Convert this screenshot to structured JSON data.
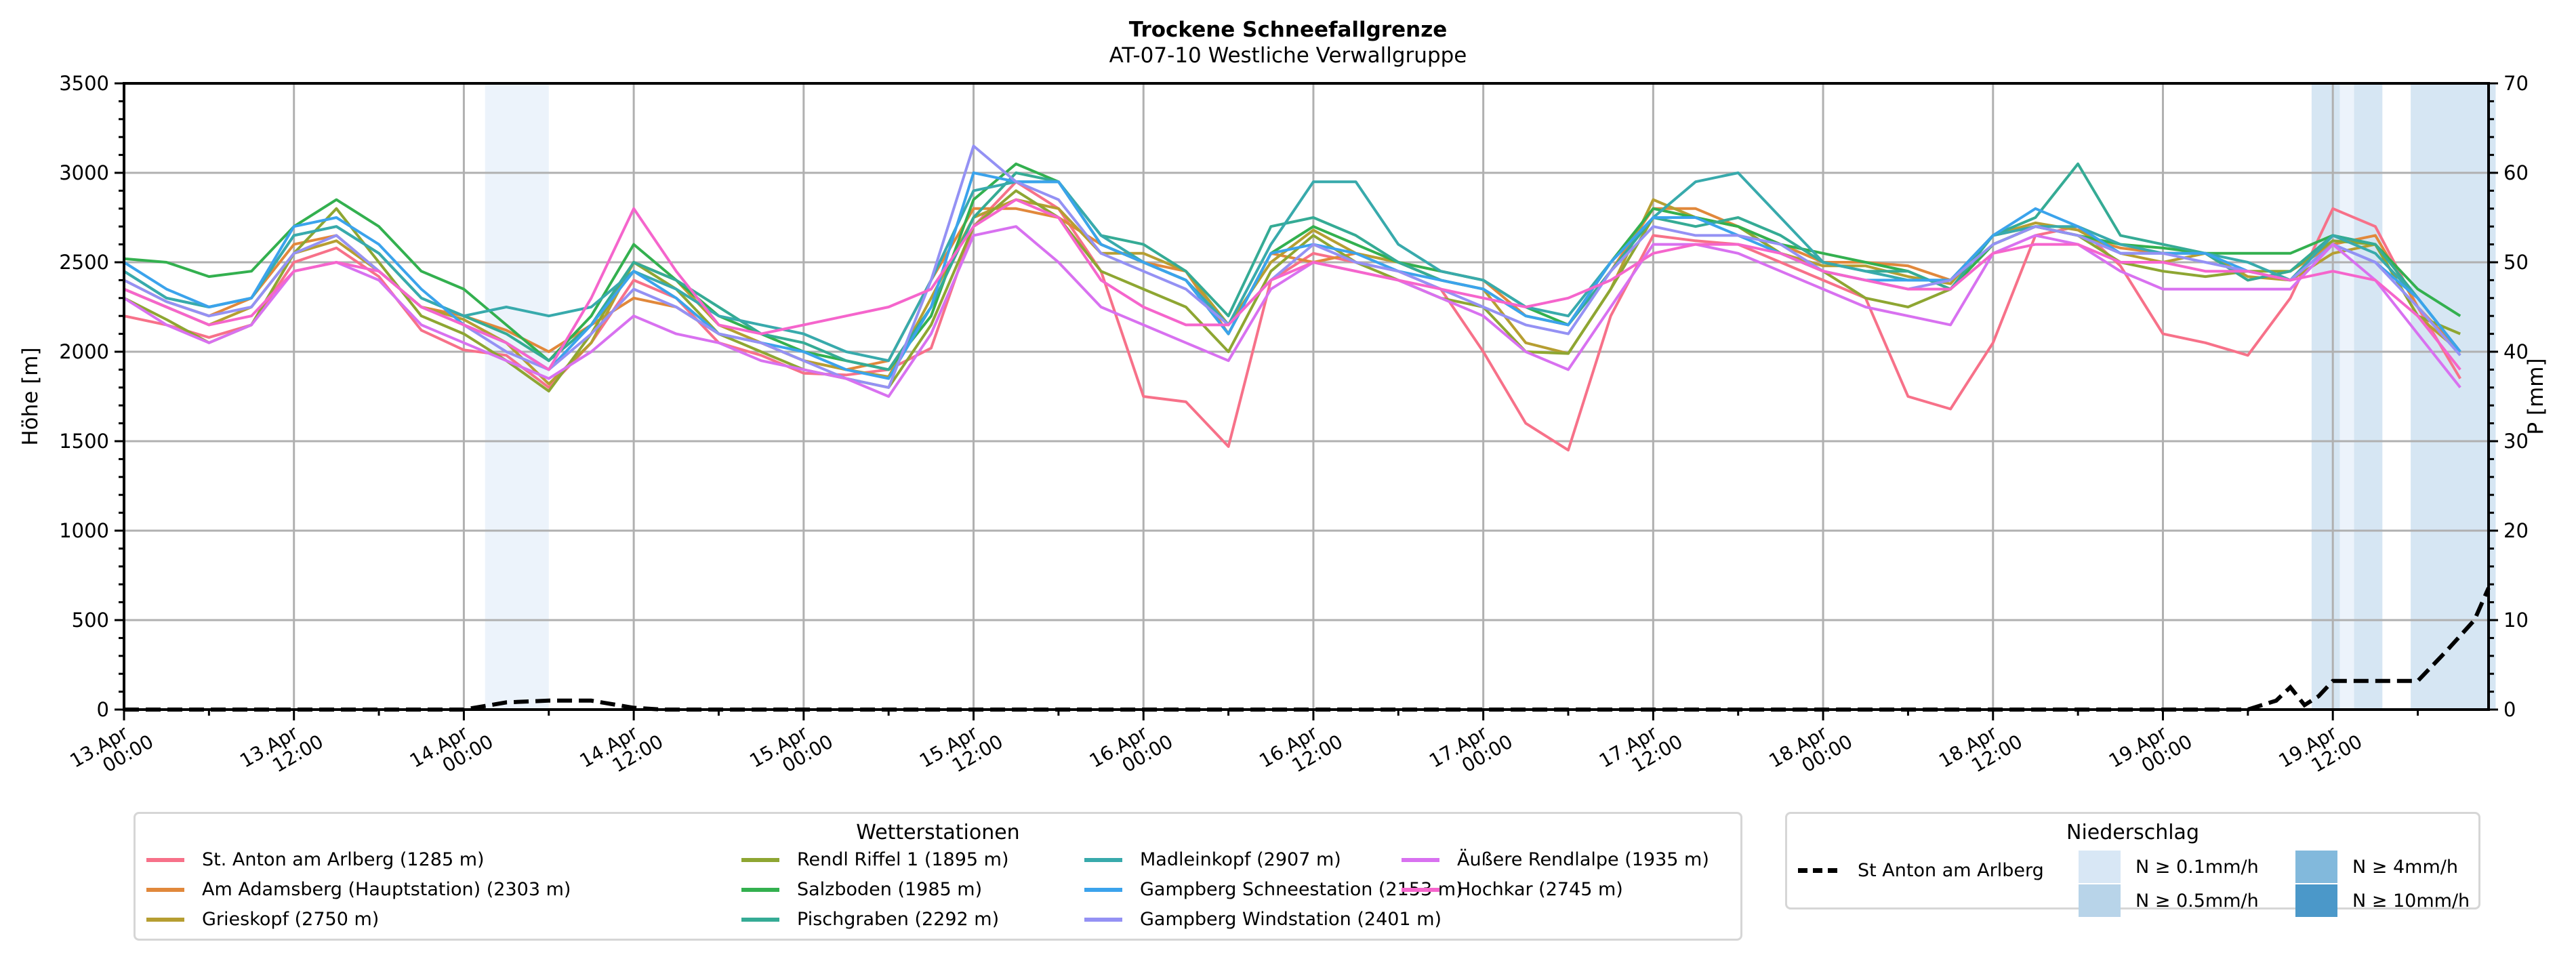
{
  "chart_data": {
    "type": "line",
    "title": "Trockene Schneefallgrenze",
    "subtitle": "AT-07-10 Westliche Verwallgruppe",
    "ylabel": "Höhe [m]",
    "y2label": "P [mm]",
    "ylim": [
      0,
      3500
    ],
    "y2lim": [
      0,
      70
    ],
    "yticks": [
      "0",
      "500",
      "1000",
      "1500",
      "2000",
      "2500",
      "3000",
      "3500"
    ],
    "y2ticks": [
      "0",
      "10",
      "20",
      "30",
      "40",
      "50",
      "60",
      "70"
    ],
    "xlim_hours": [
      0,
      167
    ],
    "xticks": [
      {
        "h": 0,
        "label": [
          "13.Apr",
          "00:00"
        ]
      },
      {
        "h": 12,
        "label": [
          "13.Apr",
          "12:00"
        ]
      },
      {
        "h": 24,
        "label": [
          "14.Apr",
          "00:00"
        ]
      },
      {
        "h": 36,
        "label": [
          "14.Apr",
          "12:00"
        ]
      },
      {
        "h": 48,
        "label": [
          "15.Apr",
          "00:00"
        ]
      },
      {
        "h": 60,
        "label": [
          "15.Apr",
          "12:00"
        ]
      },
      {
        "h": 72,
        "label": [
          "16.Apr",
          "00:00"
        ]
      },
      {
        "h": 84,
        "label": [
          "16.Apr",
          "12:00"
        ]
      },
      {
        "h": 96,
        "label": [
          "17.Apr",
          "00:00"
        ]
      },
      {
        "h": 108,
        "label": [
          "17.Apr",
          "12:00"
        ]
      },
      {
        "h": 120,
        "label": [
          "18.Apr",
          "00:00"
        ]
      },
      {
        "h": 132,
        "label": [
          "18.Apr",
          "12:00"
        ]
      },
      {
        "h": 144,
        "label": [
          "19.Apr",
          "00:00"
        ]
      },
      {
        "h": 156,
        "label": [
          "19.Apr",
          "12:00"
        ]
      }
    ],
    "grid": true,
    "x_hours": [
      0,
      3,
      6,
      9,
      12,
      15,
      18,
      21,
      24,
      27,
      30,
      33,
      36,
      39,
      42,
      45,
      48,
      51,
      54,
      57,
      60,
      63,
      66,
      69,
      72,
      75,
      78,
      81,
      84,
      87,
      90,
      93,
      96,
      99,
      102,
      105,
      108,
      111,
      114,
      117,
      120,
      123,
      126,
      129,
      132,
      135,
      138,
      141,
      144,
      147,
      150,
      153,
      156,
      159,
      162,
      165
    ],
    "legend_title": "Wetterstationen",
    "legend_position": "below-left",
    "series": [
      {
        "name": "St. Anton am Arlberg (1285 m)",
        "color": "#f77189",
        "values": [
          2200,
          2150,
          2080,
          2150,
          2500,
          2580,
          2420,
          2120,
          2010,
          1980,
          1800,
          2050,
          2400,
          2300,
          2050,
          1980,
          1880,
          1870,
          1900,
          2020,
          2700,
          2950,
          2800,
          2450,
          1750,
          1720,
          1470,
          2400,
          2550,
          2500,
          2450,
          2350,
          2000,
          1600,
          1450,
          2200,
          2650,
          2620,
          2600,
          2500,
          2400,
          2300,
          1750,
          1680,
          2050,
          2650,
          2700,
          2480,
          2100,
          2050,
          1980,
          2300,
          2800,
          2700,
          2250,
          1850
        ]
      },
      {
        "name": "Am Adamsberg (Hauptstation) (2303 m)",
        "color": "#e1883b",
        "values": [
          2400,
          2280,
          2200,
          2300,
          2600,
          2650,
          2450,
          2250,
          2200,
          2120,
          2000,
          2150,
          2300,
          2250,
          2100,
          2050,
          1950,
          1900,
          1950,
          2400,
          2800,
          2800,
          2750,
          2600,
          2500,
          2450,
          2100,
          2550,
          2500,
          2550,
          2500,
          2450,
          2400,
          2200,
          2150,
          2450,
          2800,
          2800,
          2700,
          2600,
          2500,
          2500,
          2480,
          2400,
          2650,
          2700,
          2650,
          2580,
          2550,
          2550,
          2400,
          2450,
          2600,
          2650,
          2250,
          2000
        ]
      },
      {
        "name": "Grieskopf (2750 m)",
        "color": "#b69e31",
        "values": [
          2350,
          2250,
          2150,
          2250,
          2550,
          2620,
          2450,
          2250,
          2180,
          2050,
          1820,
          2050,
          2500,
          2400,
          2150,
          2050,
          1950,
          1900,
          1860,
          2300,
          2750,
          2850,
          2800,
          2550,
          2550,
          2450,
          2150,
          2500,
          2680,
          2550,
          2500,
          2400,
          2350,
          2050,
          1990,
          2350,
          2850,
          2750,
          2700,
          2550,
          2480,
          2480,
          2420,
          2380,
          2650,
          2720,
          2680,
          2550,
          2500,
          2550,
          2420,
          2400,
          2550,
          2600,
          2200,
          2000
        ]
      },
      {
        "name": "Rendl Riffel 1 (1895 m)",
        "color": "#8ea632",
        "values": [
          2300,
          2180,
          2050,
          2150,
          2550,
          2800,
          2500,
          2200,
          2100,
          1950,
          1780,
          2100,
          2500,
          2350,
          2100,
          2000,
          1900,
          1850,
          1800,
          2150,
          2700,
          2900,
          2750,
          2450,
          2350,
          2250,
          2000,
          2450,
          2650,
          2500,
          2400,
          2300,
          2250,
          2000,
          1990,
          2350,
          2750,
          2750,
          2700,
          2550,
          2450,
          2300,
          2250,
          2350,
          2600,
          2700,
          2650,
          2500,
          2450,
          2420,
          2450,
          2450,
          2620,
          2600,
          2200,
          2100
        ]
      },
      {
        "name": "Salzboden (1985 m)",
        "color": "#33b04f",
        "values": [
          2520,
          2500,
          2420,
          2450,
          2700,
          2850,
          2700,
          2450,
          2350,
          2150,
          1950,
          2200,
          2600,
          2400,
          2200,
          2100,
          2000,
          1950,
          1900,
          2200,
          2850,
          3050,
          2950,
          2600,
          2500,
          2400,
          2100,
          2550,
          2700,
          2600,
          2500,
          2450,
          2400,
          2250,
          2150,
          2500,
          2800,
          2750,
          2700,
          2600,
          2550,
          2500,
          2450,
          2350,
          2600,
          2700,
          2650,
          2600,
          2580,
          2550,
          2550,
          2550,
          2650,
          2600,
          2350,
          2200
        ]
      },
      {
        "name": "Pischgraben (2292 m)",
        "color": "#35ab95",
        "values": [
          2450,
          2300,
          2250,
          2300,
          2650,
          2700,
          2550,
          2300,
          2200,
          2100,
          1950,
          2150,
          2500,
          2400,
          2250,
          2100,
          2050,
          1950,
          1900,
          2250,
          2750,
          3000,
          2950,
          2650,
          2600,
          2450,
          2200,
          2700,
          2750,
          2650,
          2500,
          2400,
          2350,
          2200,
          2150,
          2450,
          2750,
          2700,
          2750,
          2650,
          2500,
          2450,
          2450,
          2350,
          2650,
          2750,
          3050,
          2650,
          2600,
          2550,
          2400,
          2450,
          2650,
          2600,
          2300,
          2000
        ]
      },
      {
        "name": "Madleinkopf (2907 m)",
        "color": "#38aaac",
        "values": [
          2450,
          2300,
          2250,
          2300,
          2650,
          2700,
          2550,
          2300,
          2200,
          2250,
          2200,
          2250,
          2450,
          2350,
          2200,
          2150,
          2100,
          2000,
          1950,
          2400,
          2900,
          2950,
          2950,
          2650,
          2500,
          2400,
          2150,
          2600,
          2950,
          2950,
          2600,
          2450,
          2400,
          2250,
          2200,
          2500,
          2750,
          2950,
          3000,
          2750,
          2500,
          2450,
          2400,
          2400,
          2650,
          2700,
          2700,
          2600,
          2550,
          2550,
          2500,
          2400,
          2650,
          2550,
          2300,
          2000
        ]
      },
      {
        "name": "Gampberg Schneestation (2153 m)",
        "color": "#3ba3ec",
        "values": [
          2500,
          2350,
          2250,
          2300,
          2700,
          2750,
          2600,
          2350,
          2150,
          2050,
          1900,
          2150,
          2450,
          2300,
          2100,
          2050,
          2000,
          1900,
          1850,
          2250,
          3000,
          2950,
          2950,
          2600,
          2500,
          2400,
          2100,
          2550,
          2600,
          2550,
          2450,
          2400,
          2350,
          2200,
          2150,
          2500,
          2750,
          2750,
          2650,
          2550,
          2450,
          2400,
          2400,
          2400,
          2650,
          2800,
          2700,
          2550,
          2550,
          2550,
          2450,
          2400,
          2600,
          2500,
          2300,
          2000
        ]
      },
      {
        "name": "Gampberg Windstation (2401 m)",
        "color": "#9491f4",
        "values": [
          2400,
          2280,
          2200,
          2250,
          2550,
          2650,
          2450,
          2250,
          2150,
          2000,
          1900,
          2100,
          2350,
          2250,
          2100,
          2050,
          1950,
          1850,
          1800,
          2400,
          3150,
          2950,
          2850,
          2550,
          2450,
          2350,
          2150,
          2400,
          2600,
          2500,
          2450,
          2350,
          2250,
          2150,
          2100,
          2450,
          2700,
          2650,
          2650,
          2600,
          2450,
          2400,
          2350,
          2400,
          2600,
          2700,
          2650,
          2550,
          2550,
          2500,
          2450,
          2400,
          2600,
          2500,
          2250,
          1980
        ]
      },
      {
        "name": "Äußere Rendlalpe (1935 m)",
        "color": "#d871f0",
        "values": [
          2300,
          2150,
          2050,
          2150,
          2450,
          2500,
          2400,
          2150,
          2050,
          1950,
          1850,
          2000,
          2200,
          2100,
          2050,
          1950,
          1900,
          1850,
          1750,
          2100,
          2650,
          2700,
          2500,
          2250,
          2150,
          2050,
          1950,
          2350,
          2500,
          2450,
          2400,
          2300,
          2200,
          2000,
          1900,
          2250,
          2600,
          2600,
          2550,
          2450,
          2350,
          2250,
          2200,
          2150,
          2550,
          2650,
          2600,
          2450,
          2350,
          2350,
          2350,
          2350,
          2600,
          2400,
          2100,
          1800
        ]
      },
      {
        "name": "Hochkar (2745 m)",
        "color": "#f565cc",
        "values": [
          2350,
          2250,
          2150,
          2200,
          2450,
          2500,
          2450,
          2250,
          2150,
          2050,
          1900,
          2300,
          2800,
          2450,
          2150,
          2100,
          2150,
          2200,
          2250,
          2350,
          2700,
          2850,
          2750,
          2400,
          2250,
          2150,
          2150,
          2400,
          2500,
          2450,
          2400,
          2350,
          2300,
          2250,
          2300,
          2400,
          2550,
          2600,
          2600,
          2550,
          2450,
          2400,
          2350,
          2350,
          2550,
          2600,
          2600,
          2500,
          2500,
          2450,
          2450,
          2400,
          2450,
          2400,
          2200,
          1900
        ]
      }
    ],
    "precip": {
      "name": "St Anton am Arlberg",
      "legend_title": "Niederschlag",
      "unit": "mm",
      "hours": [
        0,
        24,
        27,
        30,
        33,
        36,
        38,
        150,
        152,
        153,
        154,
        155,
        156,
        157,
        158,
        160,
        162,
        164,
        166,
        167
      ],
      "values": [
        0,
        0,
        0.8,
        1.0,
        1.0,
        0.2,
        0,
        0,
        1,
        2.5,
        0.5,
        1.5,
        3.2,
        3.2,
        3.2,
        3.2,
        3.2,
        6.5,
        10,
        13.6
      ],
      "bands": [
        {
          "start_h": 25.5,
          "end_h": 30,
          "level": "N ≥ 0.1mm/h"
        },
        {
          "start_h": 154.5,
          "end_h": 156.5,
          "level": "N ≥ 0.5mm/h"
        },
        {
          "start_h": 156.5,
          "end_h": 157.5,
          "level": "N ≥ 0.1mm/h"
        },
        {
          "start_h": 157.5,
          "end_h": 159.5,
          "level": "N ≥ 0.5mm/h"
        },
        {
          "start_h": 161.5,
          "end_h": 167.5,
          "level": "N ≥ 0.5mm/h"
        }
      ],
      "legend_levels": [
        {
          "label": "N ≥ 0.1mm/h",
          "color": "#d8e7f5"
        },
        {
          "label": "N ≥ 0.5mm/h",
          "color": "#b8d4e9"
        },
        {
          "label": "N ≥ 4mm/h",
          "color": "#82b9dc"
        },
        {
          "label": "N ≥ 10mm/h",
          "color": "#4b98c9"
        }
      ]
    }
  }
}
